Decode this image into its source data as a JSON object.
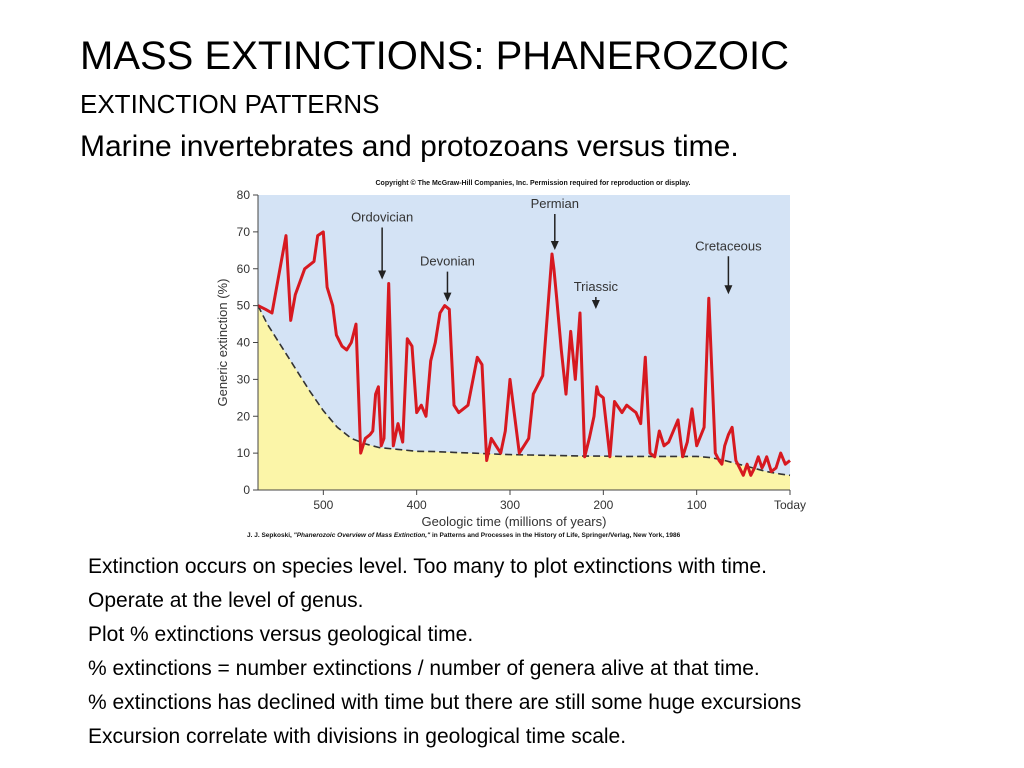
{
  "slide": {
    "title": "MASS EXTINCTIONS: PHANEROZOIC",
    "subtitle": "EXTINCTION PATTERNS",
    "caption": "Marine invertebrates and protozoans versus time."
  },
  "figure": {
    "copyright": "Copyright © The McGraw-Hill Companies, Inc. Permission required for reproduction or display.",
    "citation_author": "J. J. Sepkoski, ",
    "citation_work": "\"Phanerozoic Overview of Mass Extinction,\"",
    "citation_rest": " in Patterns and Processes in the History of Life, Springer/Verlag, New York, 1986"
  },
  "notes": [
    "Extinction occurs on species level. Too many to plot extinctions with time.",
    "Operate at the level of genus.",
    "Plot % extinctions versus geological time.",
    " % extinctions = number extinctions / number of genera alive at that time.",
    "% extinctions has declined with time but there are still some huge excursions",
    "Excursion correlate with divisions in geological time scale."
  ],
  "chart_data": {
    "type": "line",
    "xlabel": "Geologic time (millions of years)",
    "ylabel": "Generic extinction (%)",
    "xlim": [
      570,
      0
    ],
    "ylim": [
      0,
      80
    ],
    "x_ticks": [
      500,
      400,
      300,
      200,
      100,
      0
    ],
    "x_tick_labels": [
      "500",
      "400",
      "300",
      "200",
      "100",
      "Today"
    ],
    "y_ticks": [
      0,
      10,
      20,
      30,
      40,
      50,
      60,
      70,
      80
    ],
    "grid": false,
    "colors": {
      "plot_background": "#d4e3f5",
      "background_fill": "#fbf5a8",
      "extinction_line": "#d71920",
      "background_line": "#333333",
      "axis": "#444444"
    },
    "series": [
      {
        "role": "extinction",
        "x": [
          570,
          562,
          555,
          545,
          540,
          535,
          530,
          520,
          510,
          506,
          500,
          496,
          490,
          486,
          480,
          475,
          470,
          465,
          460,
          455,
          450,
          447,
          444,
          441,
          438,
          435,
          430,
          425,
          420,
          415,
          410,
          405,
          400,
          395,
          390,
          385,
          380,
          375,
          370,
          365,
          360,
          355,
          350,
          345,
          335,
          330,
          325,
          320,
          315,
          310,
          305,
          300,
          290,
          285,
          280,
          275,
          265,
          255,
          253,
          250,
          245,
          240,
          235,
          230,
          225,
          220,
          215,
          210,
          207,
          205,
          200,
          193,
          188,
          180,
          175,
          170,
          165,
          160,
          155,
          150,
          145,
          140,
          135,
          130,
          120,
          115,
          110,
          105,
          100,
          92,
          87,
          80,
          76,
          73,
          70,
          66,
          62,
          58,
          50,
          46,
          42,
          38,
          34,
          30,
          28,
          25,
          20,
          15,
          10,
          5,
          0
        ],
        "y": [
          50,
          49,
          48,
          62,
          69,
          46,
          53,
          60,
          62,
          69,
          70,
          55,
          50,
          42,
          39,
          38,
          40,
          45,
          10,
          14,
          15,
          16,
          26,
          28,
          12,
          14,
          56,
          12,
          18,
          13,
          41,
          39,
          21,
          23,
          20,
          35,
          40,
          48,
          50,
          49,
          23,
          21,
          22,
          23,
          36,
          34,
          8,
          14,
          12,
          10,
          16,
          30,
          10,
          12,
          14,
          26,
          31,
          64,
          60,
          52,
          38,
          26,
          43,
          30,
          48,
          9,
          14,
          20,
          28,
          26,
          25,
          9,
          24,
          21,
          23,
          22,
          21,
          18,
          36,
          10,
          9,
          16,
          12,
          13,
          19,
          9,
          13,
          22,
          12,
          17,
          52,
          10,
          8,
          7,
          12,
          15,
          17,
          8,
          4,
          7,
          4,
          6,
          9,
          6,
          7,
          9,
          5,
          6,
          10,
          7,
          8
        ]
      },
      {
        "role": "background",
        "x": [
          570,
          560,
          545,
          530,
          515,
          500,
          485,
          470,
          455,
          440,
          420,
          400,
          380,
          360,
          340,
          320,
          300,
          280,
          260,
          240,
          220,
          200,
          180,
          160,
          140,
          120,
          100,
          85,
          70,
          55,
          40,
          25,
          10,
          0
        ],
        "y": [
          50,
          45,
          39,
          33,
          27,
          21.5,
          17,
          14,
          12.5,
          11.5,
          11,
          10.5,
          10.4,
          10.2,
          10,
          9.8,
          9.6,
          9.5,
          9.4,
          9.3,
          9.2,
          9.2,
          9.1,
          9.1,
          9.1,
          9.1,
          9.1,
          8.8,
          8,
          7,
          6,
          5,
          4.3,
          4
        ]
      }
    ],
    "annotations": [
      {
        "label": "Ordovician",
        "x": 437,
        "y": 56
      },
      {
        "label": "Devonian",
        "x": 367,
        "y": 50
      },
      {
        "label": "Permian",
        "x": 252,
        "y": 64
      },
      {
        "label": "Triassic",
        "x": 208,
        "y": 48
      },
      {
        "label": "Cretaceous",
        "x": 66,
        "y": 52
      }
    ]
  }
}
